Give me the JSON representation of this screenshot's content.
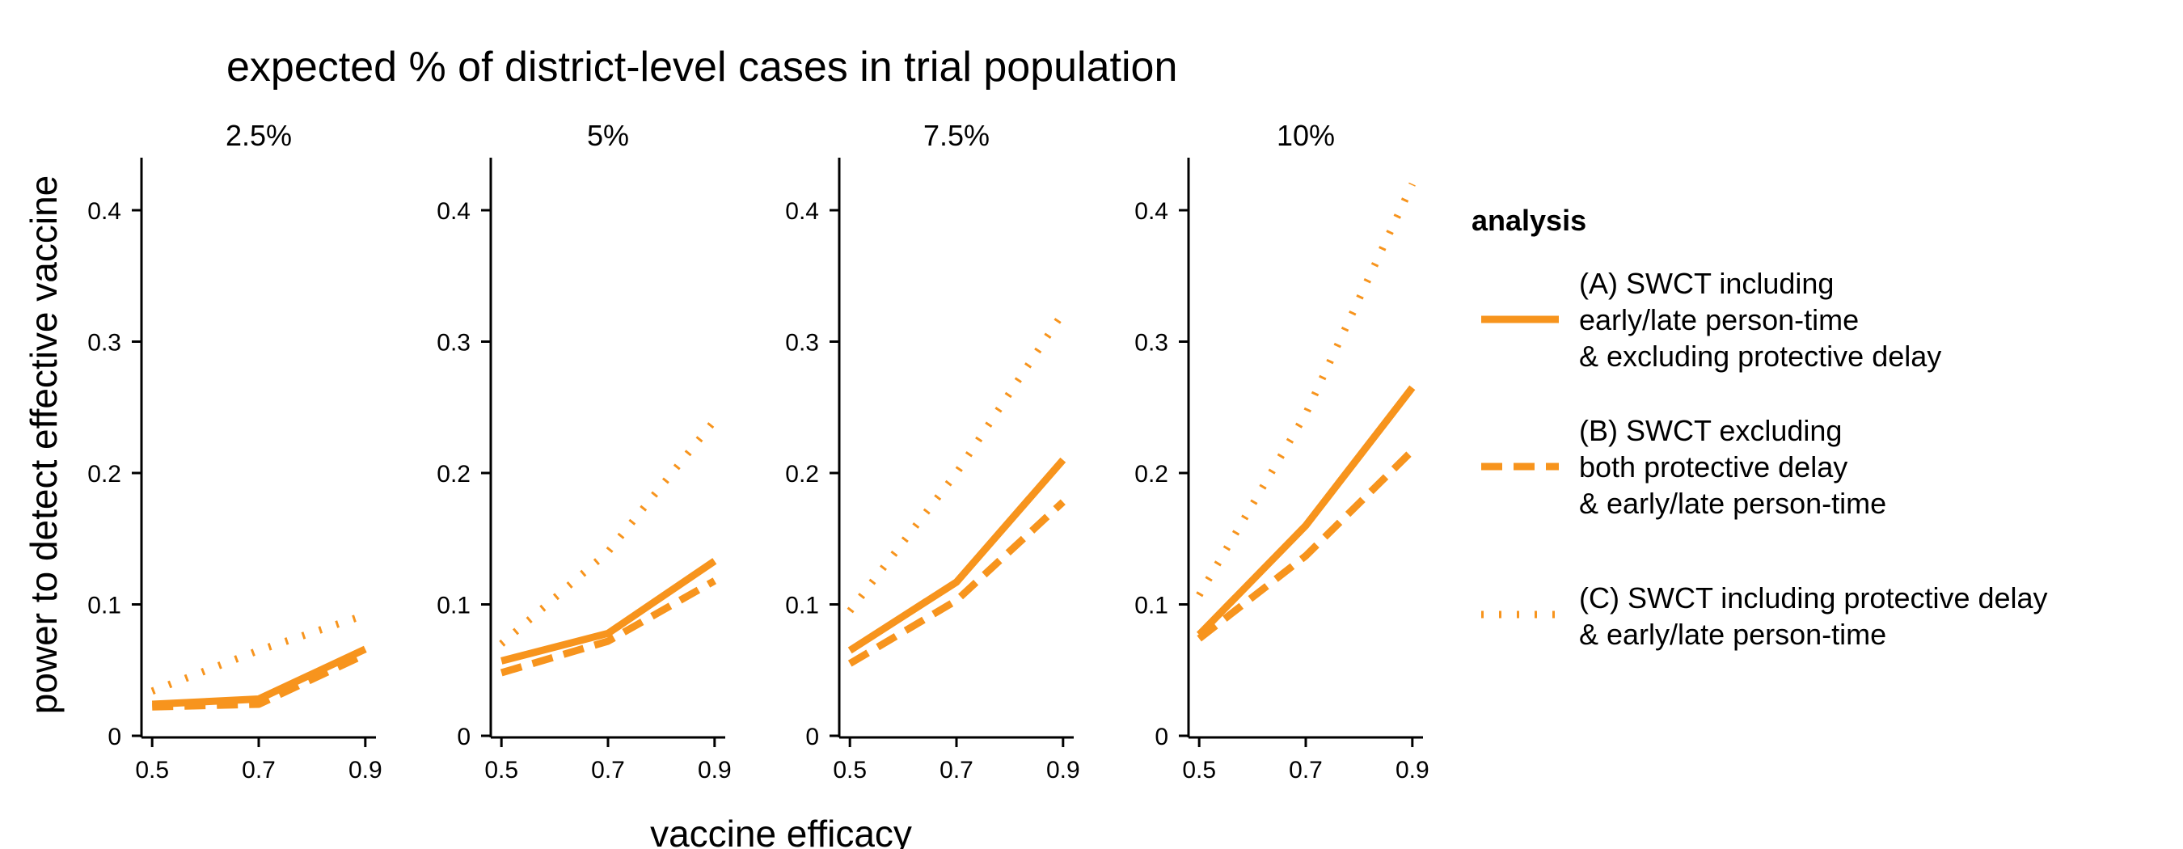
{
  "figure": {
    "title": "expected % of district-level cases in trial population",
    "xlabel": "vaccine efficacy",
    "ylabel": "power to detect effective vaccine"
  },
  "legend": {
    "title": "analysis",
    "entries": [
      {
        "key": "A",
        "lines": [
          "(A) SWCT including",
          "early/late person-time",
          "& excluding protective delay"
        ],
        "style": "solid"
      },
      {
        "key": "B",
        "lines": [
          "(B) SWCT excluding",
          "both protective delay",
          "& early/late person-time"
        ],
        "style": "dashed"
      },
      {
        "key": "C",
        "lines": [
          "(C) SWCT including protective delay",
          "& early/late person-time"
        ],
        "style": "dotted"
      }
    ]
  },
  "chart_data": {
    "type": "line",
    "color": "#F7941D",
    "x": [
      0.5,
      0.7,
      0.9
    ],
    "x_ticks": [
      "0.5",
      "0.7",
      "0.9"
    ],
    "xlim": [
      0.48,
      0.92
    ],
    "ylim": [
      0,
      0.44
    ],
    "y_ticks": [
      {
        "value": 0,
        "label": "0"
      },
      {
        "value": 0.1,
        "label": "0.1"
      },
      {
        "value": 0.2,
        "label": "0.2"
      },
      {
        "value": 0.3,
        "label": "0.3"
      },
      {
        "value": 0.4,
        "label": "0.4"
      }
    ],
    "grid": false,
    "legend_position": "right",
    "panels": [
      {
        "label": "2.5%",
        "series": {
          "A": [
            0.024,
            0.028,
            0.066
          ],
          "B": [
            0.022,
            0.024,
            0.062
          ],
          "C": [
            0.034,
            0.065,
            0.092
          ]
        }
      },
      {
        "label": "5%",
        "series": {
          "A": [
            0.057,
            0.078,
            0.133
          ],
          "B": [
            0.048,
            0.072,
            0.118
          ],
          "C": [
            0.07,
            0.14,
            0.24
          ]
        }
      },
      {
        "label": "7.5%",
        "series": {
          "A": [
            0.065,
            0.117,
            0.21
          ],
          "B": [
            0.055,
            0.103,
            0.178
          ],
          "C": [
            0.095,
            0.2,
            0.322
          ]
        }
      },
      {
        "label": "10%",
        "series": {
          "A": [
            0.077,
            0.16,
            0.265
          ],
          "B": [
            0.074,
            0.137,
            0.217
          ],
          "C": [
            0.107,
            0.245,
            0.42
          ]
        }
      }
    ]
  }
}
